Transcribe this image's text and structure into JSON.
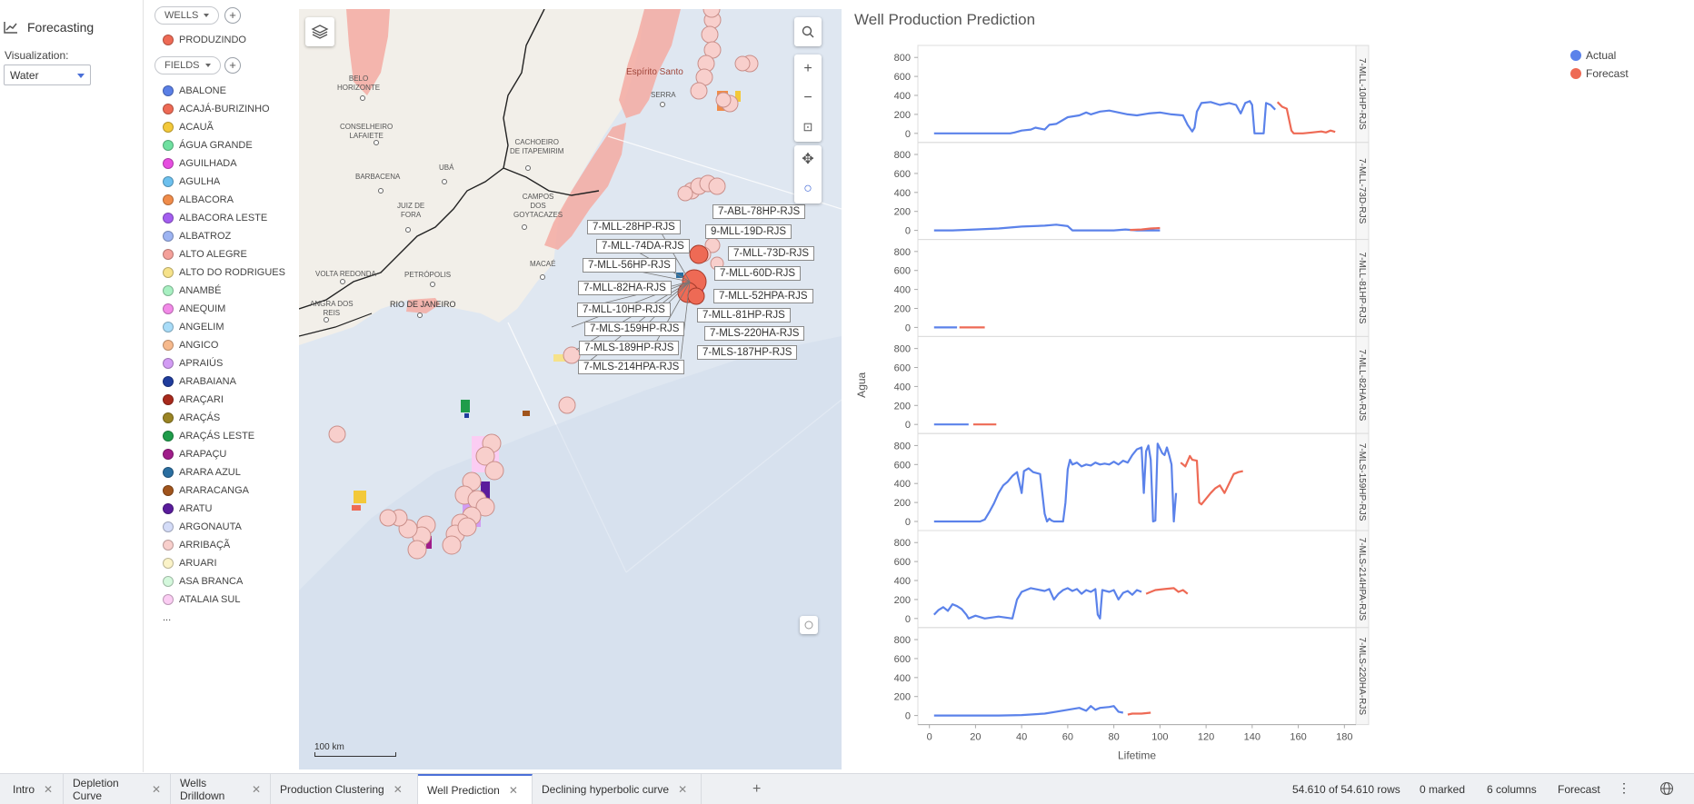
{
  "left_panel": {
    "title": "Forecasting",
    "viz_label": "Visualization:",
    "viz_value": "Water"
  },
  "legend": {
    "wells_label": "WELLS",
    "wells_items": [
      {
        "label": "PRODUZINDO",
        "color": "#ee6a55"
      }
    ],
    "fields_label": "FIELDS",
    "fields_items": [
      {
        "label": "ABALONE",
        "color": "#5a7fe6"
      },
      {
        "label": "ACAJÁ-BURIZINHO",
        "color": "#ee6a55"
      },
      {
        "label": "ACAUÃ",
        "color": "#f3c93a"
      },
      {
        "label": "ÁGUA GRANDE",
        "color": "#6fe0a0"
      },
      {
        "label": "AGUILHADA",
        "color": "#e64ee0"
      },
      {
        "label": "AGULHA",
        "color": "#6cc0ee"
      },
      {
        "label": "ALBACORA",
        "color": "#f08c4a"
      },
      {
        "label": "ALBACORA LESTE",
        "color": "#a45ef0"
      },
      {
        "label": "ALBATROZ",
        "color": "#9db4f2"
      },
      {
        "label": "ALTO ALEGRE",
        "color": "#f4a09a"
      },
      {
        "label": "ALTO DO RODRIGUES",
        "color": "#f6e28a"
      },
      {
        "label": "ANAMBÉ",
        "color": "#a8f0c2"
      },
      {
        "label": "ANEQUIM",
        "color": "#f28ae8"
      },
      {
        "label": "ANGELIM",
        "color": "#a8dcf8"
      },
      {
        "label": "ANGICO",
        "color": "#f6b98c"
      },
      {
        "label": "APRAIÚS",
        "color": "#d29cf4"
      },
      {
        "label": "ARABAIANA",
        "color": "#1f3c9c"
      },
      {
        "label": "ARAÇARI",
        "color": "#a82a1c"
      },
      {
        "label": "ARAÇÁS",
        "color": "#9a8424"
      },
      {
        "label": "ARAÇÁS LESTE",
        "color": "#1f9c4a"
      },
      {
        "label": "ARAPAÇU",
        "color": "#a01c8a"
      },
      {
        "label": "ARARA AZUL",
        "color": "#2a6ea0"
      },
      {
        "label": "ARARACANGA",
        "color": "#a0541c"
      },
      {
        "label": "ARATU",
        "color": "#5a1c9c"
      },
      {
        "label": "ARGONAUTA",
        "color": "#d4dcf8"
      },
      {
        "label": "ARRIBAÇÃ",
        "color": "#f8cfcc"
      },
      {
        "label": "ARUARI",
        "color": "#fbf3c8"
      },
      {
        "label": "ASA BRANCA",
        "color": "#d4f8dc"
      },
      {
        "label": "ATALAIA SUL",
        "color": "#fbcdf3"
      }
    ],
    "more": "..."
  },
  "map": {
    "cities": [
      {
        "name": "BELO\nHORIZONTE"
      },
      {
        "name": "CONSELHEIRO\nLAFAIETE"
      },
      {
        "name": "BARBACENA"
      },
      {
        "name": "UBÁ"
      },
      {
        "name": "JUIZ DE\nFORA"
      },
      {
        "name": "CACHOEIRO\nDE ITAPEMIRIM"
      },
      {
        "name": "CAMPOS\nDOS\nGOYTACAZES"
      },
      {
        "name": "VOLTA REDONDA"
      },
      {
        "name": "PETRÓPOLIS"
      },
      {
        "name": "MACAÉ"
      },
      {
        "name": "ANGRA DOS\nREIS"
      },
      {
        "name": "RIO DE JANEIRO"
      },
      {
        "name": "SERRA"
      },
      {
        "name": "Espírito Santo"
      }
    ],
    "well_labels": [
      "7-ABL-78HP-RJS",
      "7-MLL-28HP-RJS",
      "9-MLL-19D-RJS",
      "7-MLL-74DA-RJS",
      "7-MLL-73D-RJS",
      "7-MLL-56HP-RJS",
      "7-MLL-60D-RJS",
      "7-MLL-82HA-RJS",
      "7-MLL-52HPA-RJS",
      "7-MLL-10HP-RJS",
      "7-MLL-81HP-RJS",
      "7-MLS-159HP-RJS",
      "7-MLS-220HA-RJS",
      "7-MLS-189HP-RJS",
      "7-MLS-187HP-RJS",
      "7-MLS-214HPA-RJS"
    ],
    "scale": "100 km",
    "controls": [
      "layers-icon",
      "search-icon",
      "zoom-in-icon",
      "zoom-out-icon",
      "fit-icon",
      "pan-icon",
      "lasso-icon"
    ]
  },
  "chart": {
    "title": "Well Production Prediction",
    "legend_actual": "Actual",
    "legend_forecast": "Forecast"
  },
  "chart_data": {
    "type": "line",
    "title": "Well Production Prediction",
    "xlabel": "Lifetime",
    "ylabel": "Agua",
    "xlim": [
      -5,
      185
    ],
    "ylim": [
      0,
      850
    ],
    "x_ticks": [
      0,
      20,
      40,
      60,
      80,
      100,
      120,
      140,
      160,
      180
    ],
    "y_ticks": [
      0,
      200,
      400,
      600,
      800
    ],
    "legend_position": "top-right",
    "colors": {
      "Actual": "#5b82ea",
      "Forecast": "#ee6a55"
    },
    "panels": [
      {
        "well": "7-MLL-10HP-RJS",
        "actual": [
          [
            2,
            0
          ],
          [
            10,
            0
          ],
          [
            20,
            0
          ],
          [
            30,
            0
          ],
          [
            35,
            0
          ],
          [
            37,
            10
          ],
          [
            40,
            30
          ],
          [
            44,
            40
          ],
          [
            46,
            60
          ],
          [
            50,
            40
          ],
          [
            52,
            90
          ],
          [
            55,
            100
          ],
          [
            60,
            170
          ],
          [
            65,
            190
          ],
          [
            68,
            220
          ],
          [
            70,
            200
          ],
          [
            74,
            230
          ],
          [
            78,
            240
          ],
          [
            82,
            220
          ],
          [
            86,
            200
          ],
          [
            90,
            190
          ],
          [
            95,
            210
          ],
          [
            100,
            220
          ],
          [
            105,
            200
          ],
          [
            110,
            190
          ],
          [
            112,
            90
          ],
          [
            114,
            20
          ],
          [
            115,
            60
          ],
          [
            116,
            230
          ],
          [
            118,
            320
          ],
          [
            122,
            330
          ],
          [
            126,
            300
          ],
          [
            130,
            320
          ],
          [
            133,
            300
          ],
          [
            135,
            210
          ],
          [
            137,
            320
          ],
          [
            139,
            340
          ],
          [
            140,
            300
          ],
          [
            141,
            0
          ],
          [
            145,
            0
          ],
          [
            146,
            320
          ],
          [
            148,
            300
          ],
          [
            150,
            250
          ]
        ],
        "forecast": [
          [
            151,
            330
          ],
          [
            153,
            280
          ],
          [
            155,
            260
          ],
          [
            157,
            30
          ],
          [
            158,
            0
          ],
          [
            162,
            0
          ],
          [
            166,
            10
          ],
          [
            170,
            20
          ],
          [
            172,
            10
          ],
          [
            174,
            30
          ],
          [
            176,
            15
          ]
        ]
      },
      {
        "well": "7-MLL-73D-RJS",
        "actual": [
          [
            2,
            0
          ],
          [
            10,
            0
          ],
          [
            20,
            10
          ],
          [
            30,
            20
          ],
          [
            40,
            40
          ],
          [
            50,
            50
          ],
          [
            55,
            60
          ],
          [
            60,
            45
          ],
          [
            62,
            0
          ],
          [
            70,
            0
          ],
          [
            80,
            0
          ],
          [
            85,
            10
          ],
          [
            90,
            0
          ],
          [
            100,
            0
          ]
        ],
        "forecast": [
          [
            87,
            5
          ],
          [
            92,
            10
          ],
          [
            96,
            20
          ],
          [
            100,
            25
          ]
        ]
      },
      {
        "well": "7-MLL-81HP-RJS",
        "actual": [
          [
            2,
            0
          ],
          [
            5,
            0
          ],
          [
            10,
            0
          ],
          [
            12,
            0
          ]
        ],
        "forecast": [
          [
            13,
            0
          ],
          [
            18,
            0
          ],
          [
            24,
            0
          ]
        ]
      },
      {
        "well": "7-MLL-82HA-RJS",
        "actual": [
          [
            2,
            0
          ],
          [
            10,
            0
          ],
          [
            17,
            0
          ]
        ],
        "forecast": [
          [
            19,
            0
          ],
          [
            24,
            0
          ],
          [
            29,
            0
          ]
        ]
      },
      {
        "well": "7-MLS-159HP-RJS",
        "actual": [
          [
            2,
            0
          ],
          [
            10,
            0
          ],
          [
            20,
            0
          ],
          [
            22,
            0
          ],
          [
            24,
            20
          ],
          [
            26,
            100
          ],
          [
            28,
            190
          ],
          [
            30,
            300
          ],
          [
            32,
            380
          ],
          [
            34,
            420
          ],
          [
            36,
            480
          ],
          [
            38,
            520
          ],
          [
            40,
            300
          ],
          [
            41,
            530
          ],
          [
            43,
            560
          ],
          [
            45,
            520
          ],
          [
            48,
            500
          ],
          [
            50,
            80
          ],
          [
            51,
            0
          ],
          [
            52,
            30
          ],
          [
            53,
            10
          ],
          [
            54,
            0
          ],
          [
            58,
            0
          ],
          [
            59,
            200
          ],
          [
            60,
            550
          ],
          [
            61,
            650
          ],
          [
            62,
            600
          ],
          [
            64,
            620
          ],
          [
            66,
            580
          ],
          [
            68,
            600
          ],
          [
            70,
            590
          ],
          [
            72,
            620
          ],
          [
            74,
            600
          ],
          [
            76,
            610
          ],
          [
            78,
            600
          ],
          [
            80,
            630
          ],
          [
            82,
            600
          ],
          [
            84,
            640
          ],
          [
            86,
            620
          ],
          [
            88,
            700
          ],
          [
            90,
            760
          ],
          [
            92,
            780
          ],
          [
            93,
            300
          ],
          [
            94,
            740
          ],
          [
            95,
            800
          ],
          [
            96,
            650
          ],
          [
            97,
            0
          ],
          [
            98,
            10
          ],
          [
            99,
            820
          ],
          [
            101,
            720
          ],
          [
            102,
            700
          ],
          [
            103,
            780
          ],
          [
            104,
            700
          ],
          [
            105,
            600
          ],
          [
            106,
            0
          ],
          [
            107,
            300
          ]
        ],
        "forecast": [
          [
            109,
            620
          ],
          [
            111,
            580
          ],
          [
            113,
            690
          ],
          [
            114,
            650
          ],
          [
            116,
            640
          ],
          [
            117,
            200
          ],
          [
            118,
            180
          ],
          [
            120,
            240
          ],
          [
            122,
            300
          ],
          [
            124,
            350
          ],
          [
            126,
            380
          ],
          [
            128,
            300
          ],
          [
            130,
            400
          ],
          [
            132,
            500
          ],
          [
            134,
            520
          ],
          [
            136,
            530
          ]
        ]
      },
      {
        "well": "7-MLS-214HPA-RJS",
        "actual": [
          [
            2,
            40
          ],
          [
            4,
            90
          ],
          [
            6,
            120
          ],
          [
            8,
            80
          ],
          [
            10,
            150
          ],
          [
            12,
            130
          ],
          [
            14,
            100
          ],
          [
            16,
            40
          ],
          [
            17,
            0
          ],
          [
            20,
            30
          ],
          [
            24,
            0
          ],
          [
            30,
            20
          ],
          [
            36,
            0
          ],
          [
            38,
            200
          ],
          [
            40,
            280
          ],
          [
            44,
            320
          ],
          [
            48,
            300
          ],
          [
            50,
            290
          ],
          [
            52,
            310
          ],
          [
            54,
            200
          ],
          [
            56,
            260
          ],
          [
            58,
            300
          ],
          [
            60,
            320
          ],
          [
            62,
            290
          ],
          [
            64,
            310
          ],
          [
            66,
            260
          ],
          [
            68,
            300
          ],
          [
            70,
            280
          ],
          [
            72,
            310
          ],
          [
            73,
            40
          ],
          [
            74,
            0
          ],
          [
            75,
            300
          ],
          [
            78,
            280
          ],
          [
            80,
            300
          ],
          [
            82,
            200
          ],
          [
            84,
            270
          ],
          [
            86,
            290
          ],
          [
            88,
            250
          ],
          [
            90,
            300
          ],
          [
            92,
            280
          ]
        ],
        "forecast": [
          [
            94,
            260
          ],
          [
            98,
            300
          ],
          [
            102,
            310
          ],
          [
            106,
            320
          ],
          [
            108,
            280
          ],
          [
            110,
            300
          ],
          [
            112,
            260
          ]
        ]
      },
      {
        "well": "7-MLS-220HA-RJS",
        "actual": [
          [
            2,
            0
          ],
          [
            10,
            0
          ],
          [
            20,
            0
          ],
          [
            30,
            0
          ],
          [
            40,
            5
          ],
          [
            50,
            20
          ],
          [
            55,
            40
          ],
          [
            60,
            60
          ],
          [
            65,
            80
          ],
          [
            68,
            50
          ],
          [
            70,
            100
          ],
          [
            72,
            60
          ],
          [
            74,
            80
          ],
          [
            78,
            90
          ],
          [
            80,
            100
          ],
          [
            82,
            40
          ],
          [
            84,
            30
          ]
        ],
        "forecast": [
          [
            86,
            10
          ],
          [
            88,
            20
          ],
          [
            92,
            20
          ],
          [
            96,
            30
          ]
        ]
      }
    ]
  },
  "tabs": [
    {
      "label": "Intro",
      "active": false
    },
    {
      "label": "Depletion Curve",
      "active": false
    },
    {
      "label": "Wells Drilldown",
      "active": false
    },
    {
      "label": "Production Clustering",
      "active": false
    },
    {
      "label": "Well Prediction",
      "active": true
    },
    {
      "label": "Declining hyperbolic curve",
      "active": false
    }
  ],
  "status": {
    "rows": "54.610 of 54.610 rows",
    "marked": "0 marked",
    "columns": "6 columns",
    "page": "Forecast"
  }
}
